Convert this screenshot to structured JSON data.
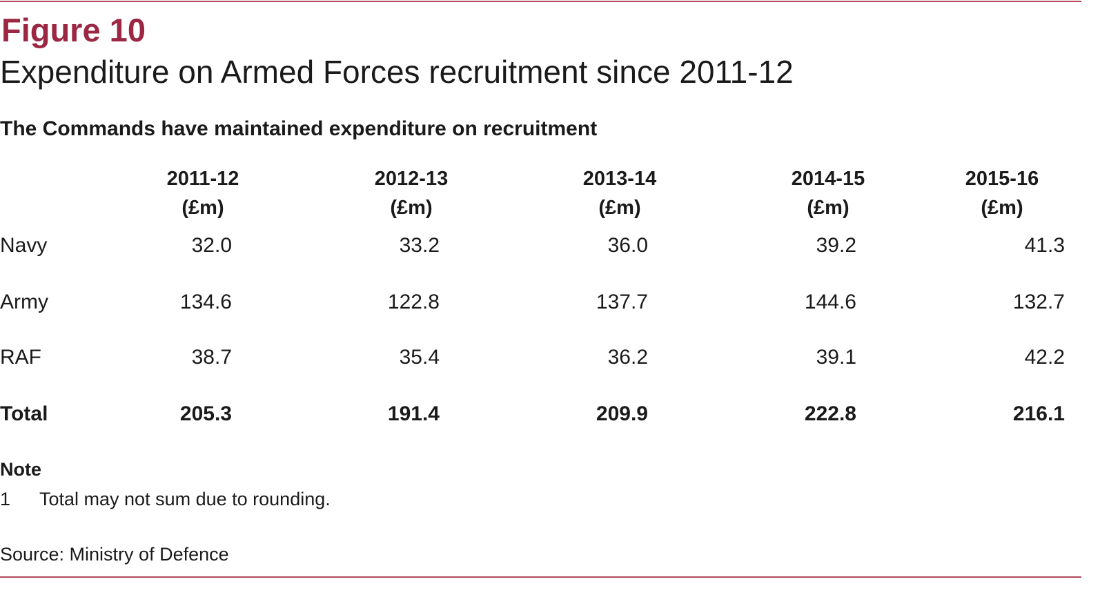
{
  "figure": {
    "label": "Figure 10",
    "title": "Expenditure on Armed Forces recruitment since 2011-12",
    "subtitle": "The Commands have maintained expenditure on recruitment"
  },
  "table": {
    "columns": [
      {
        "year": "2011-12",
        "unit": "(£m)"
      },
      {
        "year": "2012-13",
        "unit": "(£m)"
      },
      {
        "year": "2013-14",
        "unit": "(£m)"
      },
      {
        "year": "2014-15",
        "unit": "(£m)"
      },
      {
        "year": "2015-16",
        "unit": "(£m)"
      }
    ],
    "rows": [
      {
        "label": "Navy",
        "values": [
          "32.0",
          "33.2",
          "36.0",
          "39.2",
          "41.3"
        ]
      },
      {
        "label": "Army",
        "values": [
          "134.6",
          "122.8",
          "137.7",
          "144.6",
          "132.7"
        ]
      },
      {
        "label": "RAF",
        "values": [
          "38.7",
          "35.4",
          "36.2",
          "39.1",
          "42.2"
        ]
      },
      {
        "label": "Total",
        "values": [
          "205.3",
          "191.4",
          "209.9",
          "222.8",
          "216.1"
        ]
      }
    ]
  },
  "notes": {
    "heading": "Note",
    "items": [
      {
        "number": "1",
        "text": "Total may not sum due to rounding."
      }
    ]
  },
  "source": "Source: Ministry of Defence",
  "colors": {
    "accent": "#9b2743",
    "rule": "#b04a5a",
    "text": "#1a1a1a"
  }
}
